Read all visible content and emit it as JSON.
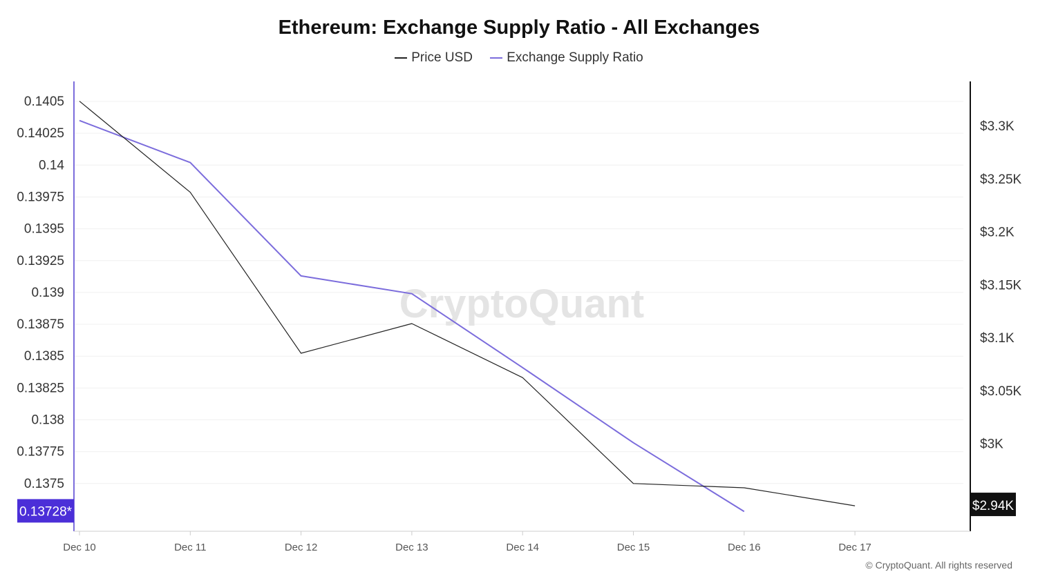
{
  "chart_data": {
    "type": "line",
    "title": "Ethereum: Exchange Supply Ratio - All Exchanges",
    "legend": [
      "Price USD",
      "Exchange Supply Ratio"
    ],
    "legend_position": "top-center",
    "x": [
      "Dec 10",
      "Dec 11",
      "Dec 12",
      "Dec 13",
      "Dec 14",
      "Dec 15",
      "Dec 16",
      "Dec 17"
    ],
    "series": [
      {
        "name": "Exchange Supply Ratio",
        "axis": "left",
        "color": "#7b6cdc",
        "values": [
          0.14035,
          0.14002,
          0.13913,
          0.13899,
          0.13841,
          0.13782,
          0.13728,
          null
        ]
      },
      {
        "name": "Price USD",
        "axis": "right",
        "color": "#222222",
        "values": [
          3323,
          3237,
          3085,
          3113,
          3062,
          2962,
          2958,
          2941
        ]
      }
    ],
    "left_axis": {
      "ylim": [
        0.13728,
        0.1405
      ],
      "ticks": [
        "0.1405",
        "0.14025",
        "0.14",
        "0.13975",
        "0.1395",
        "0.13925",
        "0.139",
        "0.13875",
        "0.1385",
        "0.13825",
        "0.138",
        "0.13775",
        "0.1375"
      ],
      "tick_values": [
        0.1405,
        0.14025,
        0.14,
        0.13975,
        0.1395,
        0.13925,
        0.139,
        0.13875,
        0.1385,
        0.13825,
        0.138,
        0.13775,
        0.1375
      ],
      "current_label": "0.13728*",
      "current_value": 0.13728,
      "current_color": "#4b2fd8"
    },
    "right_axis": {
      "ticks": [
        "$3.3K",
        "$3.25K",
        "$3.2K",
        "$3.15K",
        "$3.1K",
        "$3.05K",
        "$3K"
      ],
      "tick_values": [
        3300,
        3250,
        3200,
        3150,
        3100,
        3050,
        3000
      ],
      "current_label": "$2.94K",
      "current_value": 2941,
      "current_color": "#111111"
    },
    "grid": true,
    "watermark": "CryptoQuant"
  },
  "footer": {
    "copyright": "© CryptoQuant. All rights reserved"
  }
}
